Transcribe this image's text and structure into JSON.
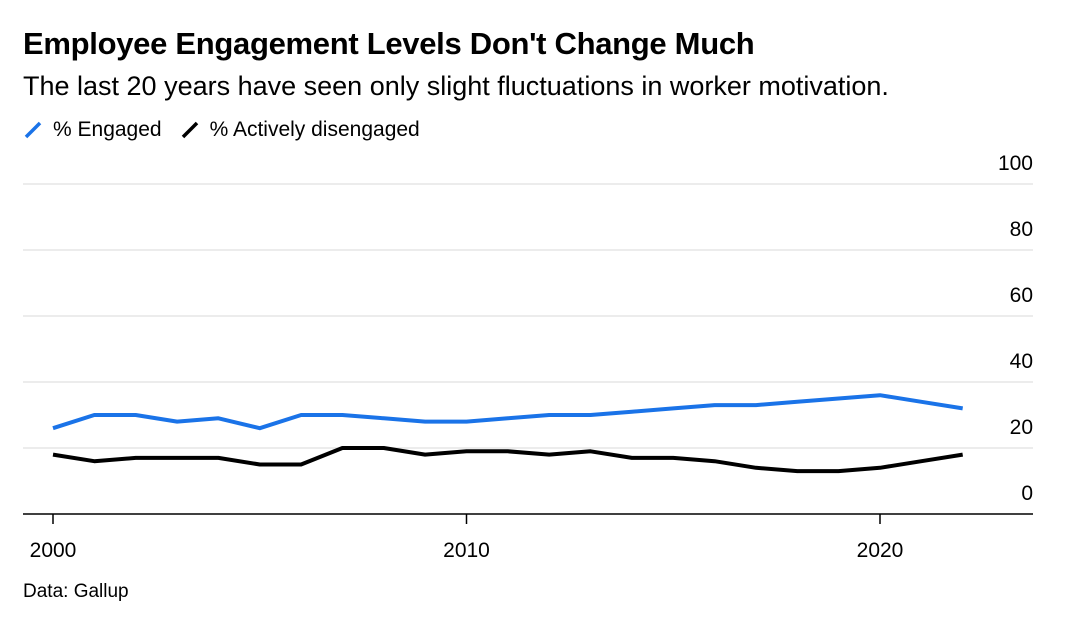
{
  "colors": {
    "engaged": "#1a73e8",
    "disengaged": "#000000",
    "grid": "#e6e6e6",
    "axis": "#000000"
  },
  "legend": {
    "engaged_icon": "diagonal-line-icon",
    "disengaged_icon": "diagonal-line-icon"
  },
  "chart_data": {
    "type": "line",
    "title": "Employee Engagement Levels Don't Change Much",
    "subtitle": "The last 20 years have seen only slight fluctuations in worker motivation.",
    "source": "Data: Gallup",
    "xlabel": "",
    "ylabel": "",
    "x": [
      2000,
      2001,
      2002,
      2003,
      2004,
      2005,
      2006,
      2007,
      2008,
      2009,
      2010,
      2011,
      2012,
      2013,
      2014,
      2015,
      2016,
      2017,
      2018,
      2019,
      2020,
      2021,
      2022
    ],
    "series": [
      {
        "name": "% Engaged",
        "values": [
          26,
          30,
          30,
          28,
          29,
          26,
          30,
          30,
          29,
          28,
          28,
          29,
          30,
          30,
          31,
          32,
          33,
          33,
          34,
          35,
          36,
          34,
          32
        ]
      },
      {
        "name": "% Actively disengaged",
        "values": [
          18,
          16,
          17,
          17,
          17,
          15,
          15,
          20,
          20,
          18,
          19,
          19,
          18,
          19,
          17,
          17,
          16,
          14,
          13,
          13,
          14,
          16,
          18
        ]
      }
    ],
    "xlim": [
      2000,
      2023.75
    ],
    "ylim": [
      0,
      100
    ],
    "xticks": [
      2000,
      2010,
      2020
    ],
    "yticks": [
      0,
      20,
      40,
      60,
      80,
      100
    ],
    "grid": true,
    "y_axis_side": "right",
    "legend_position": "top-left"
  }
}
